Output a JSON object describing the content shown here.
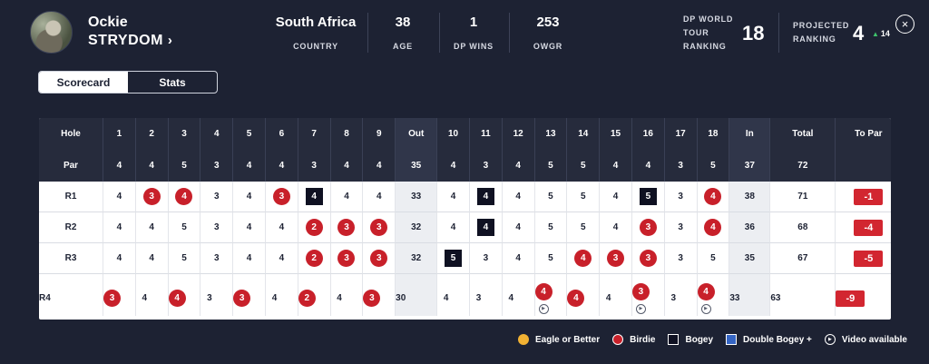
{
  "player": {
    "first_name": "Ockie",
    "last_name": "STRYDOM",
    "chevron": "›"
  },
  "stats": [
    {
      "key": "country",
      "value": "South Africa",
      "label": "COUNTRY"
    },
    {
      "key": "age",
      "value": "38",
      "label": "AGE"
    },
    {
      "key": "dp_wins",
      "value": "1",
      "label": "DP WINS"
    },
    {
      "key": "owgr",
      "value": "253",
      "label": "OWGR"
    }
  ],
  "dp_ranking": {
    "label_lines": [
      "DP WORLD",
      "TOUR",
      "RANKING"
    ],
    "value": "18"
  },
  "projected": {
    "label_lines": [
      "PROJECTED",
      "RANKING"
    ],
    "value": "4",
    "movement": "14",
    "movement_icon": "up-arrow-icon"
  },
  "close_icon": "×",
  "tabs": [
    {
      "label": "Scorecard",
      "active": true
    },
    {
      "label": "Stats",
      "active": false
    }
  ],
  "table": {
    "hole_label": "Hole",
    "par_label": "Par",
    "front_holes": [
      "1",
      "2",
      "3",
      "4",
      "5",
      "6",
      "7",
      "8",
      "9"
    ],
    "back_holes": [
      "10",
      "11",
      "12",
      "13",
      "14",
      "15",
      "16",
      "17",
      "18"
    ],
    "out_label": "Out",
    "in_label": "In",
    "total_label": "Total",
    "topar_label": "To Par",
    "front_par": [
      "4",
      "4",
      "5",
      "3",
      "4",
      "4",
      "3",
      "4",
      "4"
    ],
    "back_par": [
      "4",
      "3",
      "4",
      "5",
      "5",
      "4",
      "4",
      "3",
      "5"
    ],
    "out_par": "35",
    "in_par": "37",
    "total_par": "72",
    "rounds": [
      {
        "label": "R1",
        "front": [
          [
            "4",
            "par"
          ],
          [
            "3",
            "birdie"
          ],
          [
            "4",
            "birdie"
          ],
          [
            "3",
            "par"
          ],
          [
            "4",
            "par"
          ],
          [
            "3",
            "birdie"
          ],
          [
            "4",
            "bogey"
          ],
          [
            "4",
            "par"
          ],
          [
            "4",
            "par"
          ]
        ],
        "back": [
          [
            "4",
            "par"
          ],
          [
            "4",
            "bogey"
          ],
          [
            "4",
            "par"
          ],
          [
            "5",
            "par"
          ],
          [
            "5",
            "par"
          ],
          [
            "4",
            "par"
          ],
          [
            "5",
            "bogey"
          ],
          [
            "3",
            "par"
          ],
          [
            "4",
            "birdie"
          ]
        ],
        "out": "33",
        "in": "38",
        "total": "71",
        "topar": "-1",
        "video": []
      },
      {
        "label": "R2",
        "front": [
          [
            "4",
            "par"
          ],
          [
            "4",
            "par"
          ],
          [
            "5",
            "par"
          ],
          [
            "3",
            "par"
          ],
          [
            "4",
            "par"
          ],
          [
            "4",
            "par"
          ],
          [
            "2",
            "birdie"
          ],
          [
            "3",
            "birdie"
          ],
          [
            "3",
            "birdie"
          ]
        ],
        "back": [
          [
            "4",
            "par"
          ],
          [
            "4",
            "bogey"
          ],
          [
            "4",
            "par"
          ],
          [
            "5",
            "par"
          ],
          [
            "5",
            "par"
          ],
          [
            "4",
            "par"
          ],
          [
            "3",
            "birdie"
          ],
          [
            "3",
            "par"
          ],
          [
            "4",
            "birdie"
          ]
        ],
        "out": "32",
        "in": "36",
        "total": "68",
        "topar": "-4",
        "video": []
      },
      {
        "label": "R3",
        "front": [
          [
            "4",
            "par"
          ],
          [
            "4",
            "par"
          ],
          [
            "5",
            "par"
          ],
          [
            "3",
            "par"
          ],
          [
            "4",
            "par"
          ],
          [
            "4",
            "par"
          ],
          [
            "2",
            "birdie"
          ],
          [
            "3",
            "birdie"
          ],
          [
            "3",
            "birdie"
          ]
        ],
        "back": [
          [
            "5",
            "bogey"
          ],
          [
            "3",
            "par"
          ],
          [
            "4",
            "par"
          ],
          [
            "5",
            "par"
          ],
          [
            "4",
            "birdie"
          ],
          [
            "3",
            "birdie"
          ],
          [
            "3",
            "birdie"
          ],
          [
            "3",
            "par"
          ],
          [
            "5",
            "par"
          ]
        ],
        "out": "32",
        "in": "35",
        "total": "67",
        "topar": "-5",
        "video": []
      },
      {
        "label": "R4",
        "front": [
          [
            "3",
            "birdie"
          ],
          [
            "4",
            "par"
          ],
          [
            "4",
            "birdie"
          ],
          [
            "3",
            "par"
          ],
          [
            "3",
            "birdie"
          ],
          [
            "4",
            "par"
          ],
          [
            "2",
            "birdie"
          ],
          [
            "4",
            "par"
          ],
          [
            "3",
            "birdie"
          ]
        ],
        "back": [
          [
            "4",
            "par"
          ],
          [
            "3",
            "par"
          ],
          [
            "4",
            "par"
          ],
          [
            "4",
            "birdie"
          ],
          [
            "4",
            "birdie"
          ],
          [
            "4",
            "par"
          ],
          [
            "3",
            "birdie"
          ],
          [
            "3",
            "par"
          ],
          [
            "4",
            "birdie"
          ]
        ],
        "out": "30",
        "in": "33",
        "total": "63",
        "topar": "-9",
        "video": [
          13,
          16,
          18
        ]
      }
    ]
  },
  "legend": [
    {
      "type": "eagle",
      "label": "Eagle or Better",
      "icon": "eagle-dot-icon"
    },
    {
      "type": "birdie",
      "label": "Birdie",
      "icon": "birdie-dot-icon"
    },
    {
      "type": "bogey",
      "label": "Bogey",
      "icon": "bogey-square-icon"
    },
    {
      "type": "dbogey",
      "label": "Double Bogey +",
      "icon": "double-bogey-square-icon"
    },
    {
      "type": "video",
      "label": "Video available",
      "icon": "play-icon"
    }
  ],
  "colors": {
    "background": "#1d2233",
    "birdie": "#c8202a",
    "eagle": "#f2b233",
    "bogey": "#0f1122",
    "double_bogey": "#3565c4",
    "to_par": "#d22630",
    "up": "#3ec26b"
  }
}
